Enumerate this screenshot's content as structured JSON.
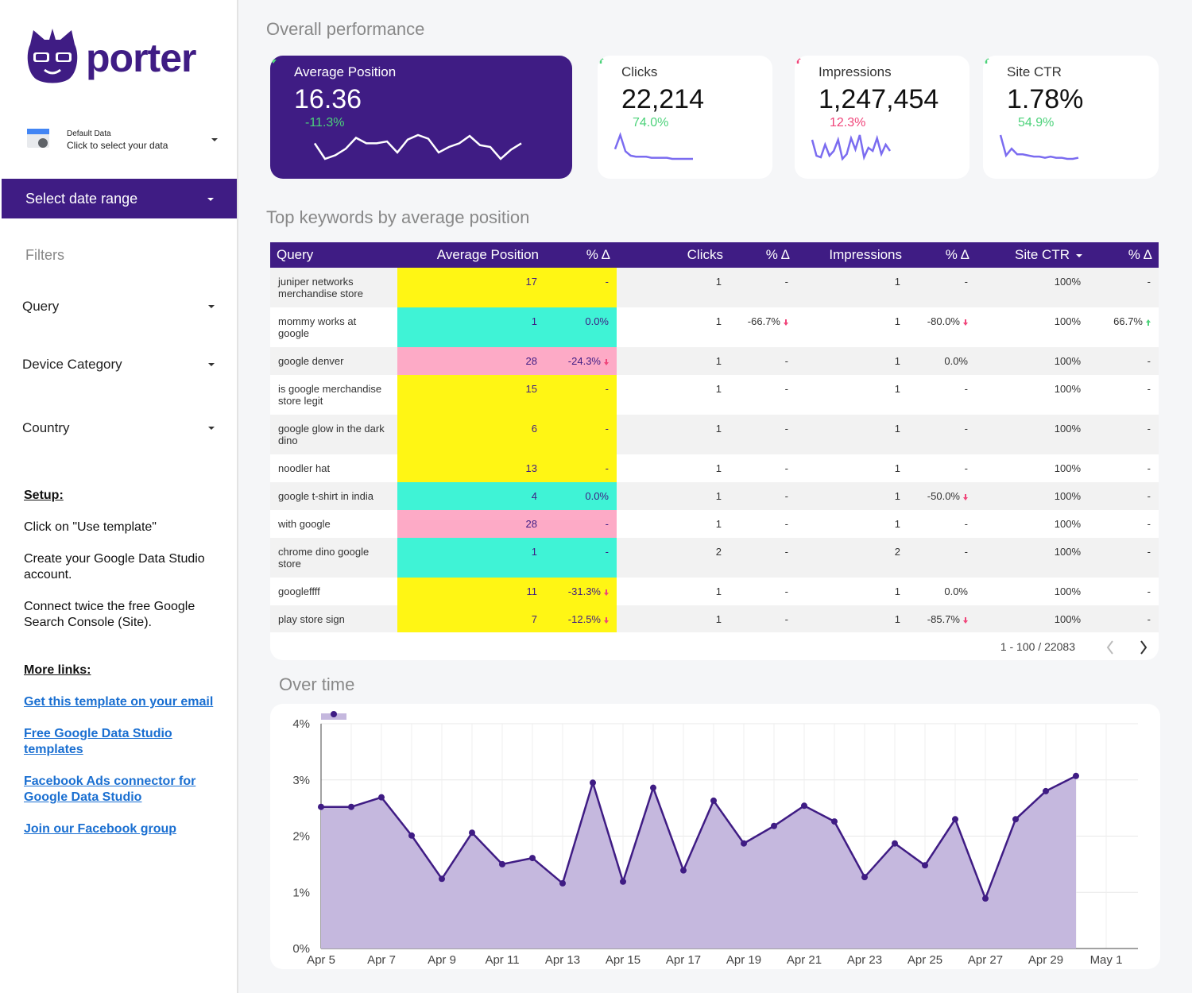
{
  "sidebar": {
    "logo": "porter",
    "data_source": {
      "name": "Default Data",
      "action": "Click to select your data"
    },
    "date_range": "Select date range",
    "filters_title": "Filters",
    "filters": [
      "Query",
      "Device Category",
      "Country"
    ],
    "setup_title": "Setup:",
    "setup_steps": [
      "Click on \"Use template\"",
      "Create your Google Data Studio account.",
      "Connect twice the free Google Search Console (Site)."
    ],
    "links_title": "More links:",
    "links": [
      "Get this template on your email",
      "Free Google Data Studio templates",
      "Facebook Ads connector for Google Data Studio",
      "Join our Facebook group"
    ]
  },
  "overview": {
    "title": "Overall performance",
    "kpis": [
      {
        "label": "Average Position",
        "value": "16.36",
        "delta": "-11.3%",
        "delta_color": "#4cd27a",
        "highlight": true,
        "sparkline": [
          20,
          3,
          7,
          14,
          26,
          20,
          20,
          22,
          10,
          24,
          29,
          25,
          10,
          16,
          20,
          28,
          18,
          16,
          3,
          13,
          20
        ]
      },
      {
        "label": "Clicks",
        "value": "22,214",
        "delta": "74.0%",
        "delta_color": "#4cd27a",
        "highlight": false,
        "sparkline": [
          12,
          25,
          10,
          6,
          5,
          5,
          5,
          4,
          4,
          4,
          4,
          3,
          3,
          3,
          3,
          3
        ]
      },
      {
        "label": "Impressions",
        "value": "1,247,454",
        "delta": "12.3%",
        "delta_color": "#f0457a",
        "highlight": false,
        "sparkline": [
          15,
          5,
          4,
          12,
          5,
          8,
          15,
          3,
          6,
          16,
          9,
          18,
          4,
          10,
          8,
          16,
          6,
          12,
          8
        ]
      },
      {
        "label": "Site CTR",
        "value": "1.78%",
        "delta": "54.9%",
        "delta_color": "#4cd27a",
        "highlight": false,
        "sparkline": [
          22,
          4,
          10,
          5,
          5,
          4,
          3,
          3,
          2,
          3,
          2,
          2,
          1,
          1,
          2
        ]
      }
    ]
  },
  "table": {
    "title": "Top keywords by average position",
    "columns": [
      "Query",
      "Average Position",
      "% Δ",
      "Clicks",
      "% Δ",
      "Impressions",
      "% Δ",
      "Site CTR",
      "% Δ"
    ],
    "rows": [
      [
        "juniper networks merchandise store",
        "17",
        "-",
        "1",
        "-",
        "1",
        "-",
        "100%",
        "-"
      ],
      [
        "mommy works at google",
        "1",
        "0.0%",
        "1",
        "-66.7%",
        "1",
        "-80.0%",
        "100%",
        "66.7%"
      ],
      [
        "google denver",
        "28",
        "-24.3%",
        "1",
        "-",
        "1",
        "0.0%",
        "100%",
        "-"
      ],
      [
        "is google merchandise store legit",
        "15",
        "-",
        "1",
        "-",
        "1",
        "-",
        "100%",
        "-"
      ],
      [
        "google glow in the dark dino",
        "6",
        "-",
        "1",
        "-",
        "1",
        "-",
        "100%",
        "-"
      ],
      [
        "noodler hat",
        "13",
        "-",
        "1",
        "-",
        "1",
        "-",
        "100%",
        "-"
      ],
      [
        "google t-shirt in india",
        "4",
        "0.0%",
        "1",
        "-",
        "1",
        "-50.0%",
        "100%",
        "-"
      ],
      [
        "with google",
        "28",
        "-",
        "1",
        "-",
        "1",
        "-",
        "100%",
        "-"
      ],
      [
        "chrome dino google store",
        "1",
        "-",
        "2",
        "-",
        "2",
        "-",
        "100%",
        "-"
      ],
      [
        "googleffff",
        "11",
        "-31.3%",
        "1",
        "-",
        "1",
        "0.0%",
        "100%",
        "-"
      ],
      [
        "play store sign",
        "7",
        "-12.5%",
        "1",
        "-",
        "1",
        "-85.7%",
        "100%",
        "-"
      ]
    ],
    "row_colors": [
      "#fff614",
      "#3ff3d6",
      "#fdaac6",
      "#fff614",
      "#fff614",
      "#fff614",
      "#3ff3d6",
      "#fdaac6",
      "#3ff3d6",
      "#fff614",
      "#fff614"
    ],
    "pagination": "1 - 100 / 22083"
  },
  "chart_data": {
    "type": "area",
    "title": "Over time",
    "categories": [
      "Apr 5",
      null,
      "Apr 7",
      null,
      "Apr 9",
      null,
      "Apr 11",
      null,
      "Apr 13",
      null,
      "Apr 15",
      null,
      "Apr 17",
      null,
      "Apr 19",
      null,
      "Apr 21",
      null,
      "Apr 23",
      null,
      "Apr 25",
      null,
      "Apr 27",
      null,
      "Apr 29",
      null,
      "May 1"
    ],
    "values": [
      2.52,
      2.52,
      2.69,
      2.01,
      1.24,
      2.06,
      1.5,
      1.61,
      1.16,
      2.95,
      1.19,
      2.86,
      1.39,
      2.63,
      1.87,
      2.18,
      2.54,
      2.26,
      1.27,
      1.87,
      1.48,
      2.3,
      0.89,
      2.3,
      2.8,
      3.07,
      null
    ],
    "color": "#3f1c84",
    "fill": "#c5b8de",
    "ylim": [
      0,
      4
    ],
    "yticks": [
      {
        "value": 0,
        "label": "0%"
      },
      {
        "value": 1,
        "label": "1%"
      },
      {
        "value": 2,
        "label": "2%"
      },
      {
        "value": 3,
        "label": "3%"
      },
      {
        "value": 4,
        "label": "4%"
      }
    ],
    "grid": true
  }
}
